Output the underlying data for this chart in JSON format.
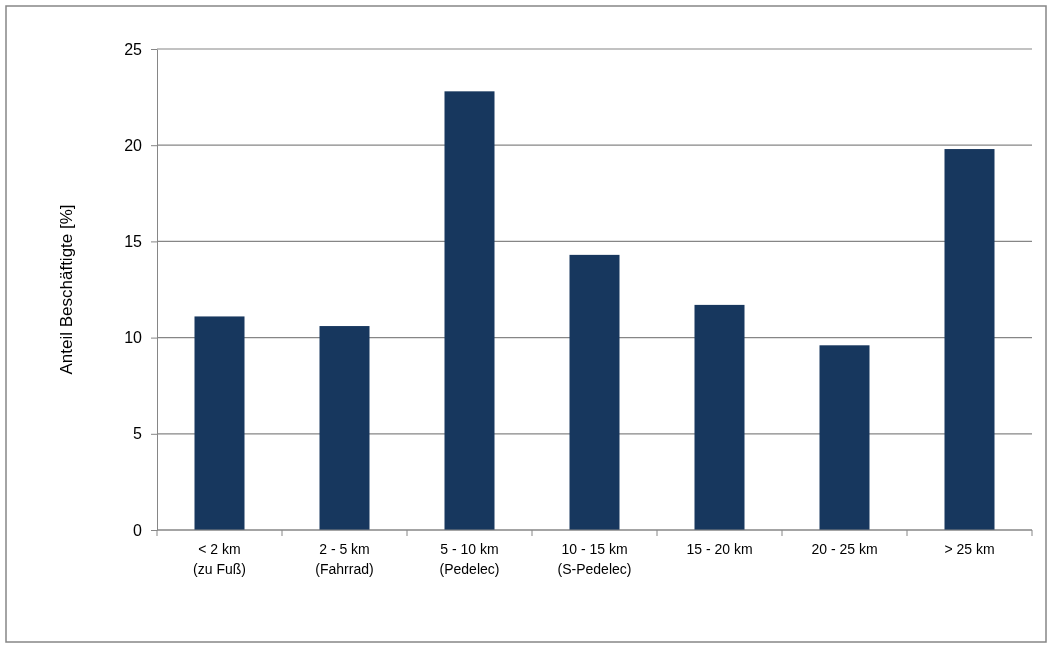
{
  "chart_data": {
    "type": "bar",
    "ylabel": "Anteil Beschäftigte [%]",
    "categories": [
      "< 2 km\n(zu Fuß)",
      "2 - 5 km\n(Fahrrad)",
      "5 - 10 km\n(Pedelec)",
      "10 - 15 km\n(S-Pedelec)",
      "15 - 20 km",
      "20 - 25 km",
      "> 25 km"
    ],
    "values": [
      11.1,
      10.6,
      22.8,
      14.3,
      11.7,
      9.6,
      19.8
    ],
    "color": "#17375e",
    "ylim": [
      0,
      25
    ],
    "yticks": [
      0,
      5,
      10,
      15,
      20,
      25
    ],
    "grid": "y"
  }
}
